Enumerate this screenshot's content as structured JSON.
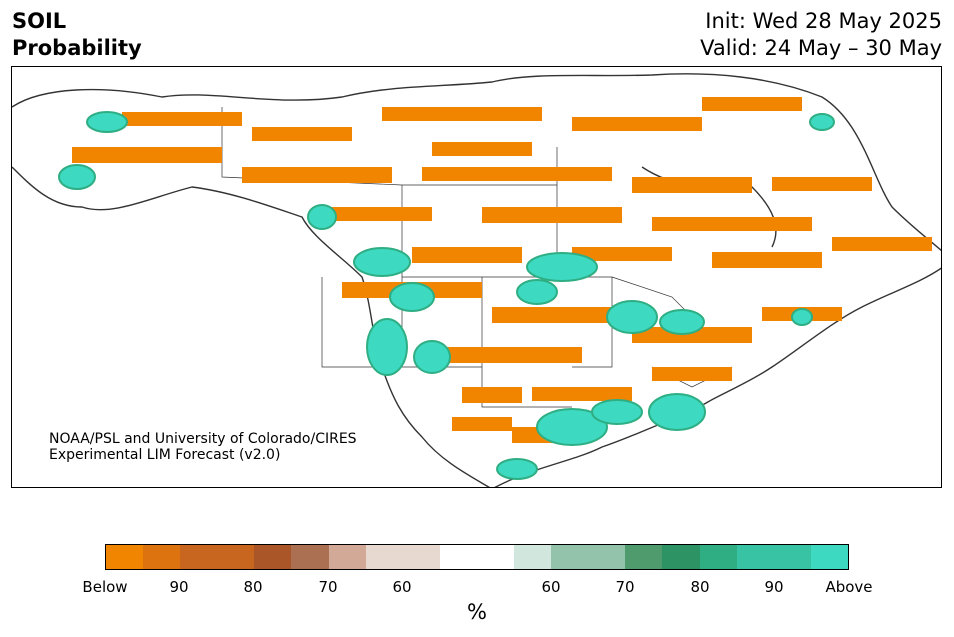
{
  "title": {
    "left_line1": "SOIL",
    "left_line2": "Probability",
    "right_line1": "Init: Wed 28 May 2025",
    "right_line2": "Valid: 24 May – 30 May"
  },
  "credit": {
    "line1": "NOAA/PSL and University of Colorado/CIRES",
    "line2": "Experimental LIM Forecast (v2.0)"
  },
  "legend": {
    "unit": "%",
    "ticks": [
      "Below",
      "90",
      "80",
      "70",
      "60",
      "60",
      "70",
      "80",
      "90",
      "Above"
    ],
    "colors": [
      "#f28500",
      "#dd730f",
      "#c8661f",
      "#c8661f",
      "#ab5628",
      "#ab6f52",
      "#d2a896",
      "#e8d9d0",
      "#e8d9d0",
      "#ffffff",
      "#ffffff",
      "#d1e6dc",
      "#93c3aa",
      "#93c3aa",
      "#4f9b6e",
      "#2e9364",
      "#2fae83",
      "#38c3a4",
      "#38c3a4",
      "#3dd9c1"
    ]
  },
  "map": {
    "below_color": "#f28500",
    "above_color": "#3dd9c1",
    "coast_color": "#333333"
  }
}
